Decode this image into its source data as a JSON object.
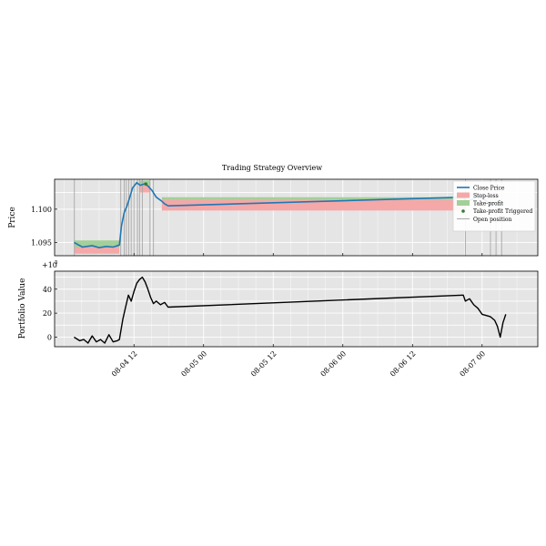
{
  "chart_data": [
    {
      "type": "line",
      "title": "Trading Strategy Overview",
      "ylabel": "Price",
      "ylim": [
        1.093,
        1.1045
      ],
      "yticks": [
        1.095,
        1.1
      ],
      "ytick_labels": [
        "1.095",
        "1.100"
      ],
      "grid": true,
      "legend_position": "top-right",
      "legend": {
        "close": "Close Price",
        "sl": "Stop-loss",
        "tp": "Take-profit",
        "trig": "Take-profit Triggered",
        "open": "Open position"
      },
      "colors": {
        "close": "#1f77b4",
        "sl": "#f4a8a8",
        "tp": "#a3cf98",
        "trig": "#2e7d32",
        "open": "#a8a8a8"
      },
      "series": {
        "name": "Close Price",
        "x": [
          4.07,
          4.13,
          4.2,
          4.25,
          4.3,
          4.35,
          4.395,
          4.41,
          4.43,
          4.45,
          4.47,
          4.49,
          4.52,
          4.545,
          4.575,
          4.6,
          4.63,
          4.66,
          4.7,
          4.72,
          4.745,
          6.865,
          6.89,
          6.935,
          6.98,
          7.06,
          7.12,
          7.16
        ],
        "y": [
          1.095,
          1.0943,
          1.0945,
          1.0942,
          1.0944,
          1.0943,
          1.0946,
          1.0975,
          1.0995,
          1.1005,
          1.1018,
          1.1032,
          1.104,
          1.1036,
          1.1038,
          1.1035,
          1.1028,
          1.1018,
          1.1012,
          1.1008,
          1.1005,
          1.1018,
          1.1012,
          1.1015,
          1.102,
          1.1008,
          1.1006,
          1.101
        ]
      },
      "stop_loss_band": [
        {
          "x0": 4.07,
          "x1": 4.395,
          "low": 1.0933,
          "high": 1.0943
        },
        {
          "x0": 4.54,
          "x1": 4.615,
          "low": 1.1025,
          "high": 1.1036
        },
        {
          "x0": 4.7,
          "x1": 6.88,
          "low": 1.0998,
          "high": 1.1014
        }
      ],
      "take_profit_band": [
        {
          "x0": 4.07,
          "x1": 4.395,
          "low": 1.0943,
          "high": 1.0953
        },
        {
          "x0": 4.54,
          "x1": 4.615,
          "low": 1.1036,
          "high": 1.1043
        },
        {
          "x0": 4.7,
          "x1": 6.88,
          "low": 1.1014,
          "high": 1.1018
        }
      ],
      "take_profit_triggered": [
        {
          "x": 4.585,
          "y": 1.1038
        },
        {
          "x": 6.86,
          "y": 1.1022
        }
      ],
      "open_positions_x": [
        4.072,
        4.405,
        4.43,
        4.445,
        4.462,
        4.48,
        4.5,
        4.525,
        4.54,
        4.56,
        4.615,
        4.64,
        6.88,
        7.06,
        7.1,
        7.14
      ]
    },
    {
      "type": "line",
      "ylabel": "Portfolio Value",
      "offset_label": "+10",
      "offset_exponent": "5",
      "ylim": [
        -8,
        55
      ],
      "yticks": [
        0,
        20,
        40
      ],
      "ytick_labels": [
        "0",
        "20",
        "40"
      ],
      "grid": true,
      "colors": {
        "line": "#000000"
      },
      "xtick_values": [
        4.5,
        5.0,
        5.5,
        6.0,
        6.5,
        7.0
      ],
      "xtick_labels": [
        "08-04 12",
        "08-05 00",
        "08-05 12",
        "08-06 00",
        "08-06 12",
        "08-07 00"
      ],
      "xlim": [
        3.93,
        7.4
      ],
      "series": {
        "name": "Portfolio Value",
        "x": [
          4.07,
          4.11,
          4.14,
          4.17,
          4.2,
          4.23,
          4.26,
          4.29,
          4.32,
          4.35,
          4.38,
          4.395,
          4.42,
          4.44,
          4.46,
          4.48,
          4.5,
          4.52,
          4.54,
          4.56,
          4.58,
          4.6,
          4.62,
          4.64,
          4.66,
          4.69,
          4.72,
          4.745,
          6.865,
          6.88,
          6.91,
          6.94,
          6.97,
          7.0,
          7.03,
          7.06,
          7.09,
          7.11,
          7.13,
          7.15,
          7.17
        ],
        "y": [
          0,
          -3,
          -2,
          -5,
          1,
          -4,
          -2,
          -5,
          2,
          -4,
          -3,
          -2,
          15,
          25,
          35,
          30,
          38,
          45,
          48,
          50,
          46,
          40,
          33,
          28,
          30,
          27,
          29,
          25,
          35,
          30,
          32,
          27,
          24,
          19,
          18,
          17,
          14,
          9,
          0,
          12,
          19
        ]
      }
    }
  ]
}
